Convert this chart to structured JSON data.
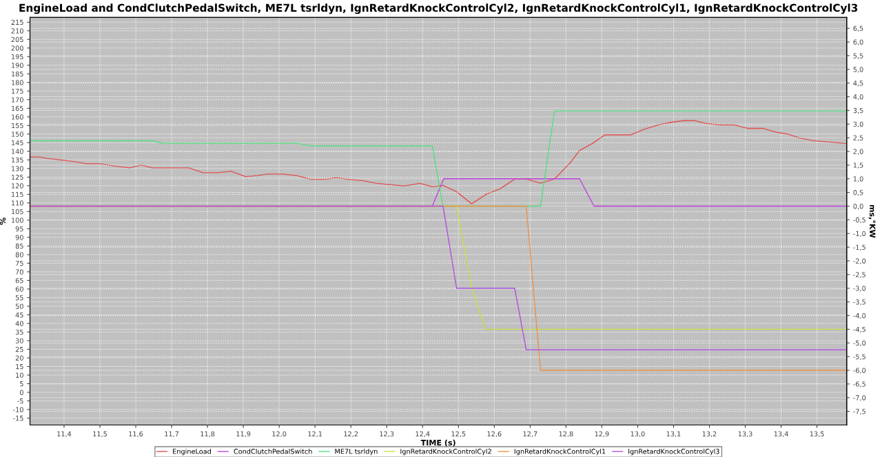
{
  "chart_data": {
    "type": "line",
    "title": "EngineLoad and CondClutchPedalSwitch, ME7L tsrldyn, IgnRetardKnockControlCyl2, IgnRetardKnockControlCyl1, IgnRetardKnockControlCyl3",
    "xlabel": "TIME (s)",
    "ylabel": "%",
    "y2label": "ms,°KW",
    "xlim": [
      11.305,
      13.583
    ],
    "ylim": [
      -19,
      217.8
    ],
    "y2lim": [
      -8.0,
      6.9
    ],
    "xticks": [
      {
        "value": 11.4,
        "label": "11,4"
      },
      {
        "value": 11.5,
        "label": "11,5"
      },
      {
        "value": 11.6,
        "label": "11,6"
      },
      {
        "value": 11.7,
        "label": "11,7"
      },
      {
        "value": 11.8,
        "label": "11,8"
      },
      {
        "value": 11.9,
        "label": "11,9"
      },
      {
        "value": 12.0,
        "label": "12,0"
      },
      {
        "value": 12.1,
        "label": "12,1"
      },
      {
        "value": 12.2,
        "label": "12,2"
      },
      {
        "value": 12.3,
        "label": "12,3"
      },
      {
        "value": 12.4,
        "label": "12,4"
      },
      {
        "value": 12.5,
        "label": "12,5"
      },
      {
        "value": 12.6,
        "label": "12,6"
      },
      {
        "value": 12.7,
        "label": "12,7"
      },
      {
        "value": 12.8,
        "label": "12,8"
      },
      {
        "value": 12.9,
        "label": "12,9"
      },
      {
        "value": 13.0,
        "label": "13,0"
      },
      {
        "value": 13.1,
        "label": "13,1"
      },
      {
        "value": 13.2,
        "label": "13,2"
      },
      {
        "value": 13.3,
        "label": "13,3"
      },
      {
        "value": 13.4,
        "label": "13,4"
      },
      {
        "value": 13.5,
        "label": "13,5"
      }
    ],
    "yticks": [
      -15,
      -10,
      -5,
      0,
      5,
      10,
      15,
      20,
      25,
      30,
      35,
      40,
      45,
      50,
      55,
      60,
      65,
      70,
      75,
      80,
      85,
      90,
      95,
      100,
      105,
      110,
      115,
      120,
      125,
      130,
      135,
      140,
      145,
      150,
      155,
      160,
      165,
      170,
      175,
      180,
      185,
      190,
      195,
      200,
      205,
      210,
      215
    ],
    "y2ticks": [
      {
        "value": -7.5,
        "label": "-7,5"
      },
      {
        "value": -7.0,
        "label": "-7,0"
      },
      {
        "value": -6.5,
        "label": "-6,5"
      },
      {
        "value": -6.0,
        "label": "-6,0"
      },
      {
        "value": -5.5,
        "label": "-5,5"
      },
      {
        "value": -5.0,
        "label": "-5,0"
      },
      {
        "value": -4.5,
        "label": "-4,5"
      },
      {
        "value": -4.0,
        "label": "-4,0"
      },
      {
        "value": -3.5,
        "label": "-3,5"
      },
      {
        "value": -3.0,
        "label": "-3,0"
      },
      {
        "value": -2.5,
        "label": "-2,5"
      },
      {
        "value": -2.0,
        "label": "-2,0"
      },
      {
        "value": -1.5,
        "label": "-1,5"
      },
      {
        "value": -1.0,
        "label": "-1,0"
      },
      {
        "value": -0.5,
        "label": "-0,5"
      },
      {
        "value": 0.0,
        "label": "0,0"
      },
      {
        "value": 0.5,
        "label": "0,5"
      },
      {
        "value": 1.0,
        "label": "1,0"
      },
      {
        "value": 1.5,
        "label": "1,5"
      },
      {
        "value": 2.0,
        "label": "2,0"
      },
      {
        "value": 2.5,
        "label": "2,5"
      },
      {
        "value": 3.0,
        "label": "3,0"
      },
      {
        "value": 3.5,
        "label": "3,5"
      },
      {
        "value": 4.0,
        "label": "4,0"
      },
      {
        "value": 4.5,
        "label": "4,5"
      },
      {
        "value": 5.0,
        "label": "5,0"
      },
      {
        "value": 5.5,
        "label": "5,5"
      },
      {
        "value": 6.0,
        "label": "6,0"
      },
      {
        "value": 6.5,
        "label": "6,5"
      }
    ],
    "grid": true,
    "legend": "bottom",
    "marker": "none",
    "line_style": "solid",
    "series": [
      {
        "name": "EngineLoad",
        "color": "#e05050",
        "x": [
          11.305,
          11.331,
          11.353,
          11.39,
          11.43,
          11.462,
          11.503,
          11.544,
          11.584,
          11.615,
          11.646,
          11.748,
          11.788,
          11.828,
          11.866,
          11.906,
          11.939,
          11.968,
          12.009,
          12.049,
          12.089,
          12.129,
          12.159,
          12.192,
          12.232,
          12.272,
          12.312,
          12.349,
          12.393,
          12.428,
          12.457,
          12.495,
          12.537,
          12.578,
          12.616,
          12.657,
          12.689,
          12.729,
          12.768,
          12.81,
          12.838,
          12.876,
          12.908,
          12.98,
          13.019,
          13.06,
          13.095,
          13.13,
          13.16,
          13.19,
          13.228,
          13.27,
          13.308,
          13.35,
          13.39,
          13.416,
          13.451,
          13.489,
          13.533,
          13.583
        ],
        "values": [
          136.7,
          136.7,
          135.9,
          135.0,
          134.0,
          132.8,
          132.8,
          131.3,
          130.4,
          132.0,
          130.4,
          130.4,
          127.6,
          127.6,
          128.4,
          125.3,
          125.9,
          126.8,
          126.8,
          125.9,
          123.7,
          123.7,
          124.7,
          123.7,
          123.0,
          121.4,
          120.6,
          119.9,
          121.4,
          119.4,
          120.2,
          116.5,
          109.5,
          115.1,
          118.2,
          123.9,
          123.9,
          121.5,
          123.9,
          132.9,
          140.5,
          144.9,
          149.5,
          149.5,
          152.9,
          155.5,
          156.9,
          157.8,
          157.8,
          156.2,
          155.3,
          155.3,
          153.3,
          153.3,
          150.9,
          150.2,
          147.8,
          146.2,
          145.5,
          144.5
        ]
      },
      {
        "name": "CondClutchPedalSwitch",
        "color": "#c040e0",
        "axis": "y2",
        "x": [
          11.305,
          12.427,
          12.459,
          12.838,
          12.878,
          13.583
        ],
        "values": [
          0.0,
          0.0,
          1.0,
          1.0,
          0.0,
          0.0
        ]
      },
      {
        "name": "ME7L tsrldyn",
        "color": "#50e080",
        "axis": "y2",
        "x": [
          11.305,
          11.646,
          11.675,
          12.049,
          12.089,
          12.427,
          12.457,
          12.729,
          12.768,
          13.583
        ],
        "values": [
          2.39,
          2.39,
          2.3,
          2.3,
          2.2,
          2.2,
          0.0,
          0.0,
          3.48,
          3.48
        ]
      },
      {
        "name": "IgnRetardKnockControlCyl2",
        "color": "#c8e040",
        "axis": "y2",
        "x": [
          11.305,
          12.495,
          12.537,
          12.575,
          13.583
        ],
        "values": [
          0.0,
          0.0,
          -3.0,
          -4.5,
          -4.5
        ]
      },
      {
        "name": "IgnRetardKnockControlCyl1",
        "color": "#f09040",
        "axis": "y2",
        "x": [
          11.305,
          12.689,
          12.729,
          13.583
        ],
        "values": [
          0.0,
          0.0,
          -6.0,
          -6.0
        ]
      },
      {
        "name": "IgnRetardKnockControlCyl3",
        "color": "#b050e0",
        "axis": "y2",
        "x": [
          11.305,
          12.457,
          12.495,
          12.657,
          12.689,
          13.583
        ],
        "values": [
          0.0,
          0.0,
          -3.0,
          -3.0,
          -5.25,
          -5.25
        ]
      }
    ]
  }
}
